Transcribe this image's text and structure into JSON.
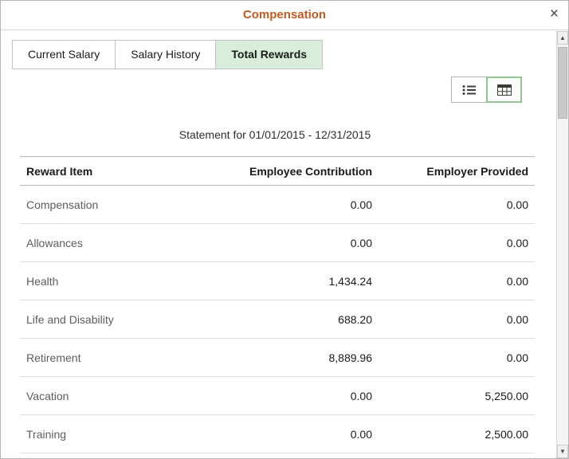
{
  "dialog": {
    "title": "Compensation",
    "close_glyph": "×"
  },
  "tabs": [
    {
      "label": "Current Salary",
      "active": false
    },
    {
      "label": "Salary History",
      "active": false
    },
    {
      "label": "Total Rewards",
      "active": true
    }
  ],
  "view_toggle": {
    "options": [
      "list-view",
      "grid-view"
    ],
    "selected": "grid-view"
  },
  "statement": "Statement for 01/01/2015 - 12/31/2015",
  "table": {
    "columns": [
      "Reward Item",
      "Employee Contribution",
      "Employer Provided"
    ],
    "rows": [
      [
        "Compensation",
        "0.00",
        "0.00"
      ],
      [
        "Allowances",
        "0.00",
        "0.00"
      ],
      [
        "Health",
        "1,434.24",
        "0.00"
      ],
      [
        "Life and Disability",
        "688.20",
        "0.00"
      ],
      [
        "Retirement",
        "8,889.96",
        "0.00"
      ],
      [
        "Vacation",
        "0.00",
        "5,250.00"
      ],
      [
        "Training",
        "0.00",
        "2,500.00"
      ]
    ]
  },
  "scrollbar": {
    "up_glyph": "▲",
    "down_glyph": "▼"
  },
  "colors": {
    "title": "#c05b21",
    "active_tab_bg": "#d8edda",
    "selected_toggle_border": "#92c592"
  }
}
